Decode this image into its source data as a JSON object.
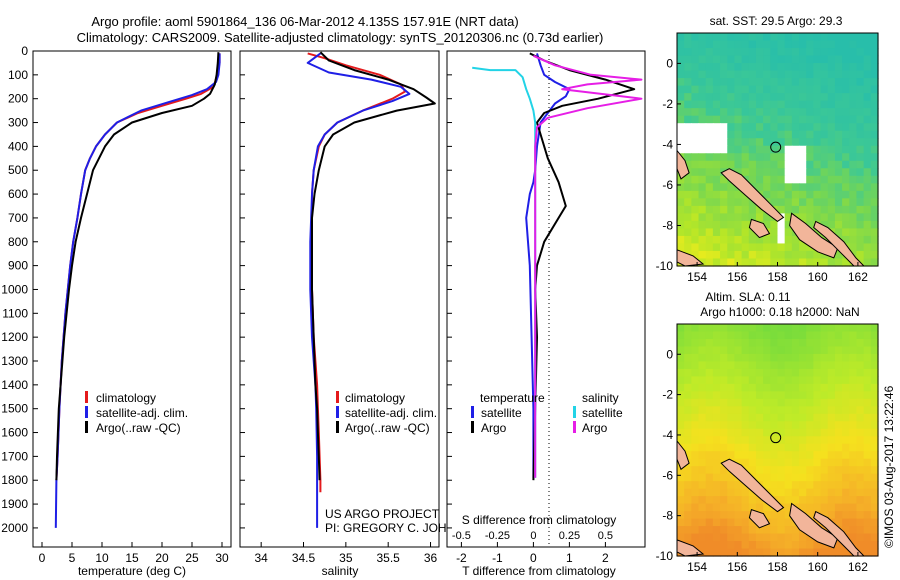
{
  "title": {
    "line1": "Argo profile: aoml 5901864_136 06-Mar-2012 4.135S 157.91E (NRT data)",
    "line2": "Climatology: CARS2009. Satellite-adjusted climatology: synTS_20120306.nc (0.73d earlier)"
  },
  "project": {
    "line1": "US ARGO PROJECT",
    "line2": "PI: GREGORY C. JOHNSON"
  },
  "stamp": "©IMOS 03-Aug-2017 13:22:46",
  "colors": {
    "climatology": "#e41a1c",
    "satellite": "#1f1fe6",
    "argo": "#000000",
    "sal_satellite": "#22d3e6",
    "sal_argo": "#e61ee6"
  },
  "chart_data": [
    {
      "type": "line",
      "name": "temperature-profile",
      "xlabel": "temperature (deg C)",
      "xlim": [
        -1.5,
        31.5
      ],
      "ylim": [
        0,
        2080
      ],
      "yticks": [
        0,
        100,
        200,
        300,
        400,
        500,
        600,
        700,
        800,
        900,
        1000,
        1100,
        1200,
        1300,
        1400,
        1500,
        1600,
        1700,
        1800,
        1900,
        2000
      ],
      "xticks": [
        0,
        5,
        10,
        15,
        20,
        25,
        30
      ],
      "legend": [
        "climatology",
        "satellite-adj. clim.",
        "Argo(..raw -QC)"
      ],
      "series": [
        {
          "name": "climatology",
          "color": "#e41a1c",
          "x": [
            29.6,
            29.6,
            29.2,
            28.6,
            26.5,
            24,
            20,
            16,
            12.5,
            10.5,
            9,
            8,
            7.2,
            6.5,
            5.9,
            5.2,
            4.7,
            4.3,
            3.9,
            3.6,
            3.3,
            3.1,
            2.9,
            2.6,
            2.4
          ],
          "y": [
            10,
            50,
            100,
            150,
            180,
            200,
            230,
            260,
            300,
            350,
            400,
            450,
            500,
            600,
            700,
            800,
            900,
            1000,
            1100,
            1200,
            1300,
            1400,
            1500,
            1700,
            1800
          ]
        },
        {
          "name": "satellite",
          "color": "#1f1fe6",
          "x": [
            29.6,
            29.6,
            29.4,
            29,
            27.5,
            25,
            21,
            16.5,
            12.5,
            10.5,
            9,
            8,
            7.2,
            6.5,
            5.9,
            5.2,
            4.7,
            4.3,
            3.9,
            3.6,
            3.3,
            3.1,
            2.9,
            2.6,
            2.4,
            2.3
          ],
          "y": [
            10,
            50,
            100,
            130,
            160,
            185,
            215,
            250,
            300,
            350,
            400,
            450,
            500,
            600,
            700,
            800,
            900,
            1000,
            1100,
            1200,
            1300,
            1400,
            1500,
            1700,
            1800,
            2000
          ]
        },
        {
          "name": "argo",
          "color": "#000000",
          "x": [
            29.4,
            29.3,
            29.1,
            28.8,
            28,
            27,
            25,
            20,
            15,
            12,
            10.5,
            9.5,
            8.5,
            7.5,
            7,
            6.5,
            5.6,
            5,
            4.5,
            4.1,
            3.7,
            3.4,
            3.1,
            2.8,
            2.5,
            2.4
          ],
          "y": [
            5,
            50,
            100,
            140,
            180,
            200,
            230,
            260,
            300,
            350,
            400,
            450,
            500,
            600,
            650,
            700,
            800,
            900,
            1000,
            1100,
            1200,
            1300,
            1400,
            1500,
            1700,
            1800
          ]
        }
      ]
    },
    {
      "type": "line",
      "name": "salinity-profile",
      "xlabel": "salinity",
      "xlim": [
        33.75,
        36.1
      ],
      "ylim": [
        0,
        2080
      ],
      "xticks": [
        34,
        34.5,
        35,
        35.5,
        36
      ],
      "legend": [
        "climatology",
        "satellite-adj. clim.",
        "Argo(..raw -QC)"
      ],
      "series": [
        {
          "name": "climatology",
          "color": "#e41a1c",
          "x": [
            34.55,
            34.75,
            35.0,
            35.4,
            35.65,
            35.7,
            35.55,
            35.2,
            34.9,
            34.75,
            34.68,
            34.62,
            34.6,
            34.6,
            34.6,
            34.6,
            34.62,
            34.64,
            34.66,
            34.67,
            34.68,
            34.69,
            34.7,
            34.7
          ],
          "y": [
            10,
            30,
            60,
            100,
            140,
            170,
            200,
            250,
            300,
            350,
            400,
            500,
            600,
            800,
            900,
            1000,
            1200,
            1300,
            1400,
            1500,
            1600,
            1700,
            1800,
            1850
          ]
        },
        {
          "name": "satellite",
          "color": "#1f1fe6",
          "x": [
            34.7,
            34.55,
            34.8,
            35.3,
            35.65,
            35.75,
            35.55,
            35.2,
            34.9,
            34.75,
            34.67,
            34.62,
            34.6,
            34.58,
            34.58,
            34.58,
            34.6,
            34.62,
            34.64,
            34.65,
            34.66,
            34.66
          ],
          "y": [
            10,
            50,
            90,
            120,
            150,
            180,
            210,
            250,
            300,
            350,
            400,
            500,
            600,
            800,
            900,
            1000,
            1200,
            1300,
            1400,
            1500,
            1700,
            2000
          ]
        },
        {
          "name": "argo",
          "color": "#000000",
          "x": [
            34.7,
            34.8,
            35.1,
            35.5,
            35.8,
            35.95,
            36.05,
            35.6,
            35.1,
            34.85,
            34.75,
            34.68,
            34.63,
            34.6,
            34.6,
            34.6,
            34.6,
            34.62,
            34.64,
            34.66,
            34.67,
            34.68,
            34.69
          ],
          "y": [
            5,
            40,
            80,
            120,
            160,
            195,
            220,
            250,
            300,
            350,
            400,
            500,
            600,
            700,
            800,
            900,
            1000,
            1200,
            1400,
            1500,
            1600,
            1700,
            1800
          ]
        }
      ]
    },
    {
      "type": "line",
      "name": "difference-profile",
      "xlabel": "T difference from climatology",
      "xlabel_top": "S difference from climatology",
      "xlim": [
        -2.4,
        3.1
      ],
      "ylim": [
        0,
        2080
      ],
      "xticks": [
        -2,
        -1,
        0,
        1,
        2
      ],
      "xticks_s": [
        -0.5,
        -0.25,
        0,
        0.25,
        0.5
      ],
      "legend_titles": [
        "temperature",
        "salinity"
      ],
      "legend_left": [
        "satellite",
        "Argo"
      ],
      "legend_right": [
        "satellite",
        "Argo"
      ],
      "series": [
        {
          "name": "temperature satellite",
          "color": "#1f1fe6",
          "x": [
            0.1,
            0.2,
            0.3,
            0.6,
            1.0,
            0.9,
            0.6,
            0.4,
            0.2,
            0.1,
            0.05,
            0,
            -0.1,
            -0.2,
            -0.15,
            -0.1,
            -0.05,
            0,
            0
          ],
          "y": [
            10,
            60,
            100,
            130,
            160,
            190,
            220,
            260,
            300,
            400,
            500,
            550,
            600,
            700,
            800,
            900,
            1200,
            1500,
            1790
          ]
        },
        {
          "name": "temperature argo",
          "color": "#000000",
          "x": [
            -0.1,
            0.3,
            1.0,
            2.0,
            2.8,
            1.8,
            0.8,
            0.3,
            0.1,
            0.2,
            0.4,
            0.7,
            0.9,
            0.7,
            0.3,
            0.1,
            0.05,
            0.1,
            0.05,
            0
          ],
          "y": [
            10,
            40,
            80,
            120,
            160,
            200,
            230,
            260,
            300,
            350,
            450,
            550,
            650,
            700,
            800,
            900,
            1000,
            1200,
            1500,
            1800
          ]
        },
        {
          "name": "salinity satellite",
          "color": "#22d3e6",
          "x": [
            -1.7,
            -1.2,
            -0.5,
            -0.3,
            -0.2,
            -0.1,
            0,
            0.05,
            0.05,
            0.05,
            0.05,
            0.05
          ],
          "y": [
            70,
            80,
            80,
            110,
            160,
            200,
            250,
            300,
            400,
            500,
            600,
            1790
          ]
        },
        {
          "name": "salinity argo",
          "color": "#e61ee6",
          "x": [
            0,
            0.6,
            1.6,
            3.0,
            1.5,
            0.8,
            3.0,
            1.5,
            0.4,
            0.1,
            0.05,
            0.05,
            0.05
          ],
          "y": [
            20,
            60,
            100,
            120,
            140,
            160,
            200,
            240,
            280,
            320,
            400,
            600,
            1790
          ]
        }
      ]
    },
    {
      "type": "heatmap",
      "name": "sst-map",
      "title": "sat. SST: 29.5 Argo: 29.3",
      "xlim": [
        153,
        163
      ],
      "ylim": [
        -10,
        1.5
      ],
      "xticks": [
        154,
        156,
        158,
        160,
        162
      ],
      "yticks": [
        0,
        -2,
        -4,
        -6,
        -8,
        -10
      ],
      "marker": {
        "lon": 157.91,
        "lat": -4.135
      }
    },
    {
      "type": "heatmap",
      "name": "sla-map",
      "title_line1": "Altim. SLA: 0.11",
      "title_line2": "Argo h1000: 0.18 h2000: NaN",
      "xlim": [
        153,
        163
      ],
      "ylim": [
        -10,
        1.5
      ],
      "xticks": [
        154,
        156,
        158,
        160,
        162
      ],
      "yticks": [
        0,
        -2,
        -4,
        -6,
        -8,
        -10
      ],
      "marker": {
        "lon": 157.91,
        "lat": -4.135
      }
    }
  ]
}
